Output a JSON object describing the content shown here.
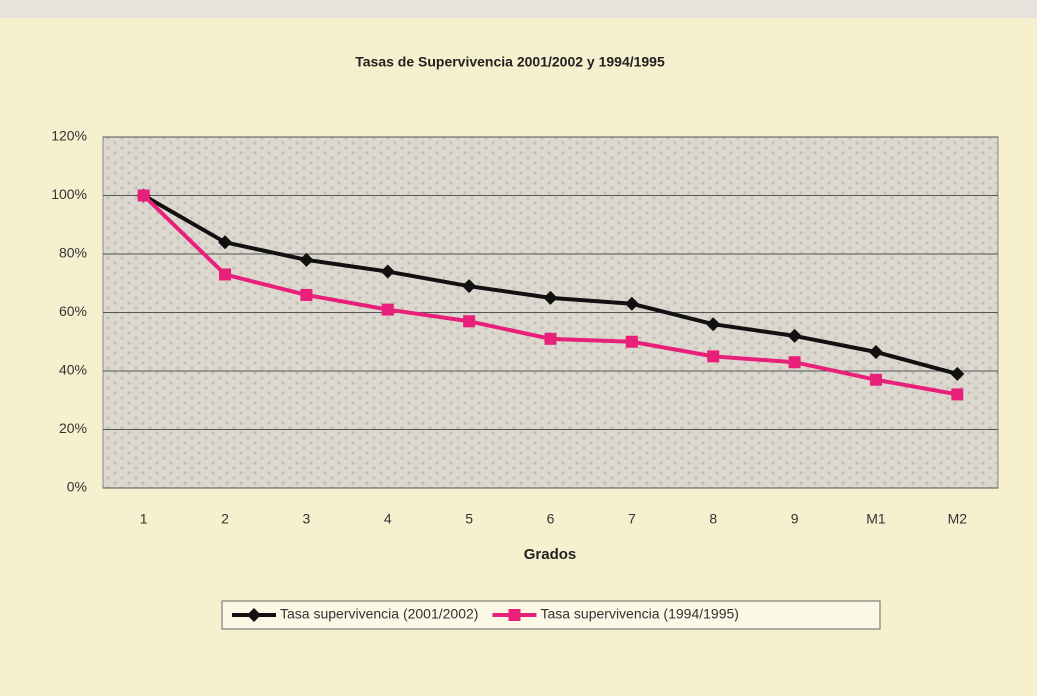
{
  "chart_data": {
    "type": "line",
    "title": "Tasas de Supervivencia 2001/2002 y 1994/1995",
    "x_label": "Grados",
    "categories": [
      "1",
      "2",
      "3",
      "4",
      "5",
      "6",
      "7",
      "8",
      "9",
      "M1",
      "M2"
    ],
    "series": [
      {
        "name": "Tasa supervivencia (2001/2002)",
        "color": "#111111",
        "marker": "diamond",
        "values": [
          100,
          84,
          78,
          74,
          69,
          65,
          63,
          56,
          52,
          46.5,
          39
        ]
      },
      {
        "name": "Tasa supervivencia (1994/1995)",
        "color": "#e8207a",
        "marker": "square",
        "values": [
          100,
          73,
          66,
          61,
          57,
          51,
          50,
          45,
          43,
          37,
          32
        ]
      }
    ],
    "ylim": [
      0,
      120
    ],
    "yticks": [
      {
        "value": 0,
        "label": "0%"
      },
      {
        "value": 20,
        "label": "20%"
      },
      {
        "value": 40,
        "label": "40%"
      },
      {
        "value": 60,
        "label": "60%"
      },
      {
        "value": 80,
        "label": "80%"
      },
      {
        "value": 100,
        "label": "100%"
      },
      {
        "value": 120,
        "label": "120%"
      }
    ],
    "grid": true,
    "legend": "bottom"
  }
}
